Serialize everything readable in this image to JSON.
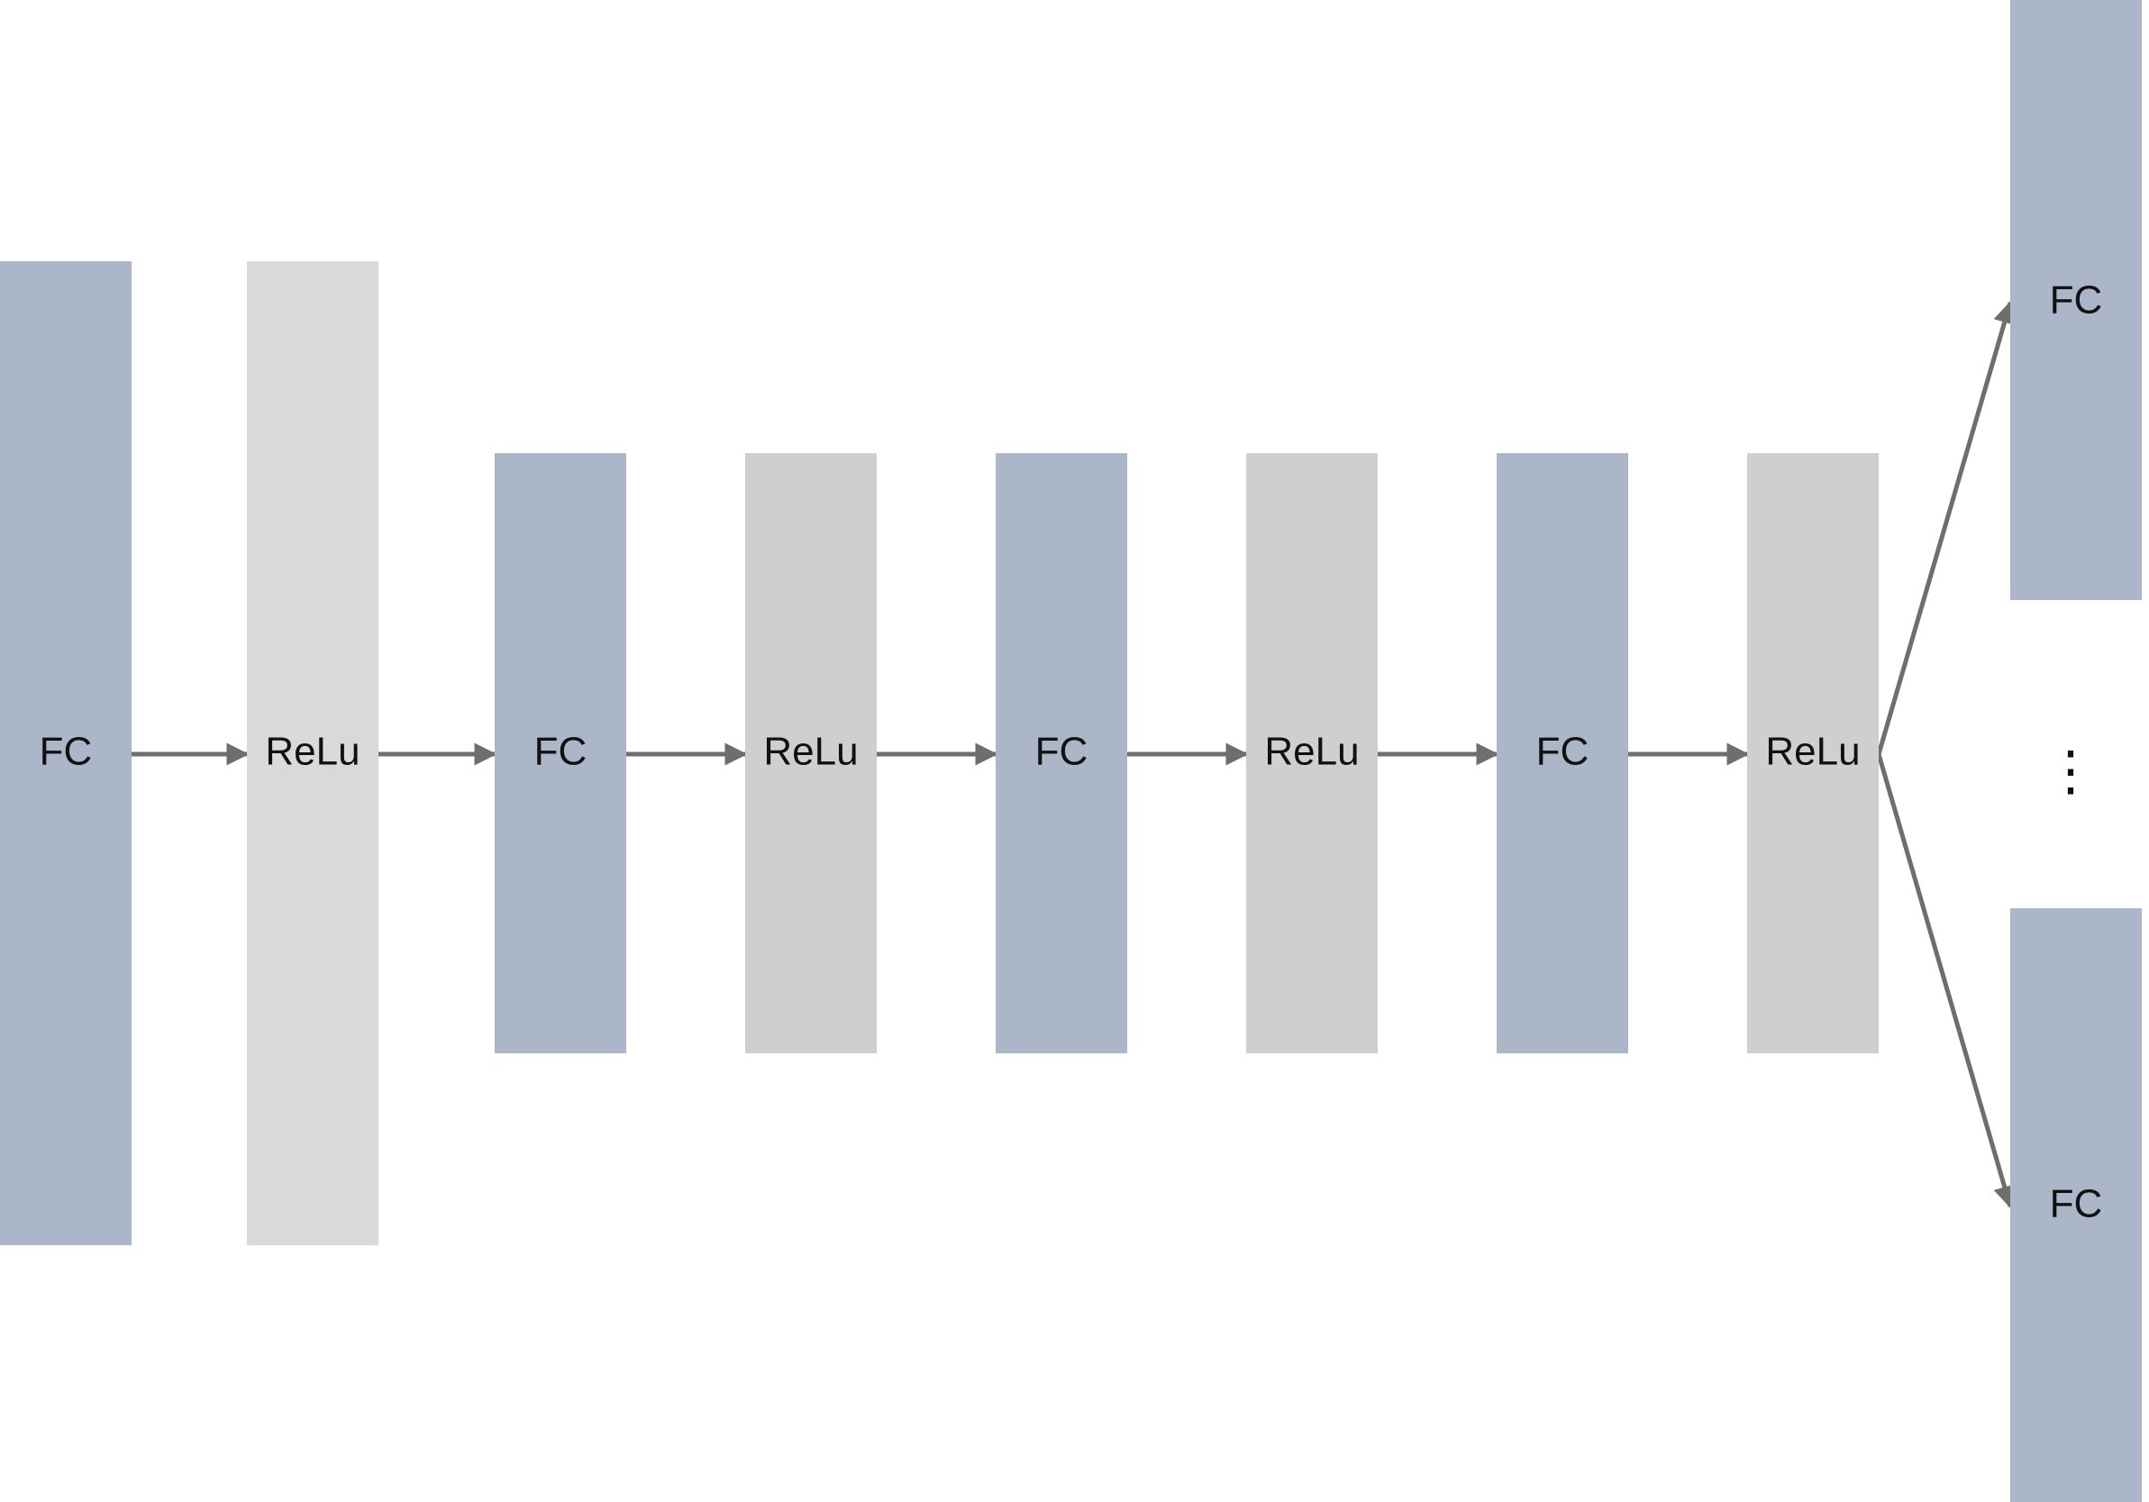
{
  "diagram": {
    "colors": {
      "fc_block": "#abb7c9",
      "relu_block_light": "#d9d9d9",
      "relu_block": "#d0cfd0",
      "arrow": "#6f6e6f",
      "text": "#111111"
    },
    "blocks": [
      {
        "id": "fc-1",
        "kind": "fc",
        "label": "FC"
      },
      {
        "id": "relu-1",
        "kind": "relu",
        "label": "ReLu"
      },
      {
        "id": "fc-2",
        "kind": "fc",
        "label": "FC"
      },
      {
        "id": "relu-2",
        "kind": "relu",
        "label": "ReLu"
      },
      {
        "id": "fc-3",
        "kind": "fc",
        "label": "FC"
      },
      {
        "id": "relu-3",
        "kind": "relu",
        "label": "ReLu"
      },
      {
        "id": "fc-4",
        "kind": "fc",
        "label": "FC"
      },
      {
        "id": "relu-4",
        "kind": "relu",
        "label": "ReLu"
      },
      {
        "id": "fc-out-top",
        "kind": "fc",
        "label": "FC"
      },
      {
        "id": "fc-out-bottom",
        "kind": "fc",
        "label": "FC"
      }
    ],
    "edges": [
      {
        "from": "fc-1",
        "to": "relu-1"
      },
      {
        "from": "relu-1",
        "to": "fc-2"
      },
      {
        "from": "fc-2",
        "to": "relu-2"
      },
      {
        "from": "relu-2",
        "to": "fc-3"
      },
      {
        "from": "fc-3",
        "to": "relu-3"
      },
      {
        "from": "relu-3",
        "to": "fc-4"
      },
      {
        "from": "fc-4",
        "to": "relu-4"
      },
      {
        "from": "relu-4",
        "to": "fc-out-top"
      },
      {
        "from": "relu-4",
        "to": "fc-out-bottom"
      }
    ],
    "ellipsis": "⋮"
  }
}
